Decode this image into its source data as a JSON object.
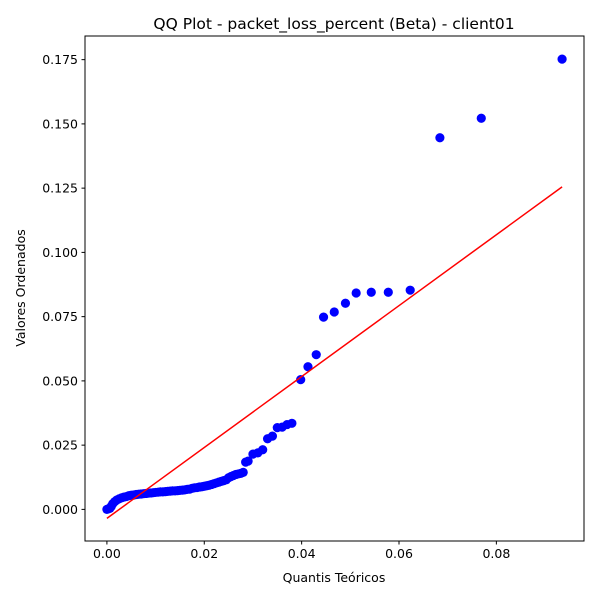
{
  "chart_data": {
    "type": "scatter",
    "title": "QQ Plot - packet_loss_percent (Beta) - client01",
    "xlabel": "Quantis Teóricos",
    "ylabel": "Valores Ordenados",
    "xlim": [
      -0.0045,
      0.098
    ],
    "ylim": [
      -0.0123,
      0.1842
    ],
    "xticks": [
      0.0,
      0.02,
      0.04,
      0.06,
      0.08
    ],
    "xtick_labels": [
      "0.00",
      "0.02",
      "0.04",
      "0.06",
      "0.08"
    ],
    "yticks": [
      0.0,
      0.025,
      0.05,
      0.075,
      0.1,
      0.125,
      0.15,
      0.175
    ],
    "ytick_labels": [
      "0.000",
      "0.025",
      "0.050",
      "0.075",
      "0.100",
      "0.125",
      "0.150",
      "0.175"
    ],
    "grid": false,
    "series": [
      {
        "name": "Ordered values",
        "kind": "points",
        "color": "#0000ff",
        "points": [
          [
            0.0,
            0.0
          ],
          [
            0.0003,
            0.0002
          ],
          [
            0.0006,
            0.0004
          ],
          [
            0.0009,
            0.0012
          ],
          [
            0.0012,
            0.0022
          ],
          [
            0.0016,
            0.003
          ],
          [
            0.002,
            0.0036
          ],
          [
            0.0025,
            0.0041
          ],
          [
            0.003,
            0.0045
          ],
          [
            0.0035,
            0.0048
          ],
          [
            0.004,
            0.005
          ],
          [
            0.0045,
            0.0053
          ],
          [
            0.005,
            0.0055
          ],
          [
            0.0055,
            0.0056
          ],
          [
            0.006,
            0.0058
          ],
          [
            0.0065,
            0.0059
          ],
          [
            0.007,
            0.006
          ],
          [
            0.0075,
            0.0061
          ],
          [
            0.008,
            0.0062
          ],
          [
            0.0085,
            0.0063
          ],
          [
            0.009,
            0.0064
          ],
          [
            0.0095,
            0.0065
          ],
          [
            0.01,
            0.0066
          ],
          [
            0.0105,
            0.0067
          ],
          [
            0.011,
            0.0068
          ],
          [
            0.0115,
            0.0068
          ],
          [
            0.012,
            0.0069
          ],
          [
            0.0125,
            0.007
          ],
          [
            0.013,
            0.0071
          ],
          [
            0.0135,
            0.0072
          ],
          [
            0.014,
            0.0072
          ],
          [
            0.0145,
            0.0073
          ],
          [
            0.015,
            0.0074
          ],
          [
            0.0155,
            0.0075
          ],
          [
            0.016,
            0.0076
          ],
          [
            0.0165,
            0.0078
          ],
          [
            0.017,
            0.0079
          ],
          [
            0.0175,
            0.0082
          ],
          [
            0.018,
            0.0084
          ],
          [
            0.0185,
            0.0085
          ],
          [
            0.019,
            0.0087
          ],
          [
            0.0195,
            0.0088
          ],
          [
            0.02,
            0.009
          ],
          [
            0.0205,
            0.0092
          ],
          [
            0.021,
            0.0094
          ],
          [
            0.0215,
            0.0097
          ],
          [
            0.022,
            0.01
          ],
          [
            0.0225,
            0.0103
          ],
          [
            0.023,
            0.0106
          ],
          [
            0.0235,
            0.0109
          ],
          [
            0.024,
            0.0112
          ],
          [
            0.0245,
            0.0115
          ],
          [
            0.025,
            0.0123
          ],
          [
            0.0255,
            0.0128
          ],
          [
            0.026,
            0.0132
          ],
          [
            0.0265,
            0.0136
          ],
          [
            0.027,
            0.0138
          ],
          [
            0.0275,
            0.014
          ],
          [
            0.028,
            0.0144
          ],
          [
            0.0285,
            0.0184
          ],
          [
            0.029,
            0.0188
          ],
          [
            0.03,
            0.0215
          ],
          [
            0.031,
            0.022
          ],
          [
            0.032,
            0.0232
          ],
          [
            0.033,
            0.0275
          ],
          [
            0.034,
            0.0285
          ],
          [
            0.035,
            0.0318
          ],
          [
            0.036,
            0.032
          ],
          [
            0.037,
            0.033
          ],
          [
            0.038,
            0.0335
          ],
          [
            0.0398,
            0.0505
          ],
          [
            0.0413,
            0.0555
          ],
          [
            0.043,
            0.0602
          ],
          [
            0.0445,
            0.0748
          ],
          [
            0.0467,
            0.0768
          ],
          [
            0.049,
            0.0802
          ],
          [
            0.0512,
            0.0842
          ],
          [
            0.0543,
            0.0845
          ],
          [
            0.0578,
            0.0845
          ],
          [
            0.0623,
            0.0853
          ],
          [
            0.0684,
            0.1446
          ],
          [
            0.0769,
            0.1522
          ],
          [
            0.0935,
            0.1752
          ]
        ]
      },
      {
        "name": "Reference line",
        "kind": "line",
        "color": "#ff0000",
        "points": [
          [
            0.0,
            -0.0035
          ],
          [
            0.0935,
            0.1255
          ]
        ]
      }
    ]
  }
}
